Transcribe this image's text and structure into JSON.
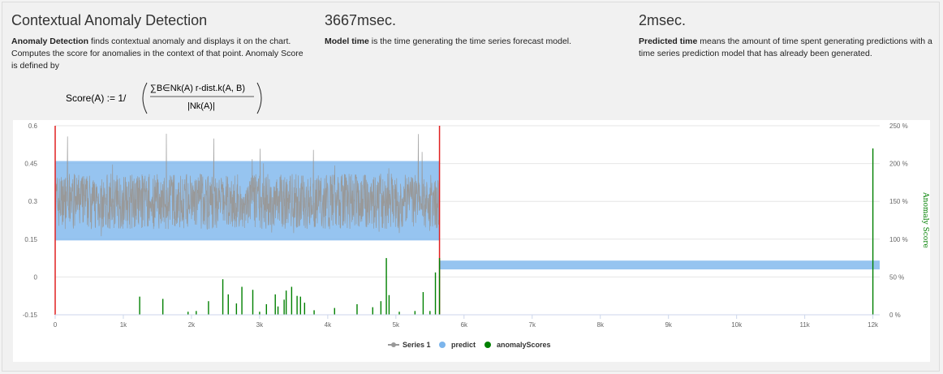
{
  "sections": [
    {
      "title": "Contextual Anomaly Detection",
      "bold": "Anomaly Detection",
      "text": " finds contextual anomaly and displays it on the chart. Computes the score for anomalies in the context of that point. Anomaly Score is defined by"
    },
    {
      "title": "3667msec.",
      "bold": "Model time",
      "text": " is the time generating the time series forecast model."
    },
    {
      "title": "2msec.",
      "bold": "Predicted time",
      "text": " means the amount of time spent generating predictions with a time series prediction model that has already been generated."
    }
  ],
  "formula": {
    "lhs": "Score(A) := 1/",
    "numerator": "∑B∈Nk(A) r-dist.k(A, B)",
    "denominator": "|Nk(A)|"
  },
  "colors": {
    "series1": "#999999",
    "predict": "#7cb5ec",
    "anomaly": "#008000",
    "marker": "#e02020"
  },
  "chart_data": {
    "type": "line",
    "x_ticks": [
      "0",
      "1k",
      "2k",
      "3k",
      "4k",
      "5k",
      "6k",
      "7k",
      "8k",
      "9k",
      "10k",
      "11k",
      "12k"
    ],
    "y_ticks": [
      "-0.15",
      "0",
      "0.15",
      "0.3",
      "0.45",
      "0.6"
    ],
    "y2_ticks": [
      "0 %",
      "50 %",
      "100 %",
      "150 %",
      "200 %",
      "250 %"
    ],
    "y2label": "Anomaly Score",
    "xlim": [
      0,
      12100
    ],
    "ylim": [
      -0.15,
      0.6
    ],
    "y2lim": [
      0,
      250
    ],
    "series": [
      {
        "name": "Series 1",
        "type": "line",
        "x_range": [
          0,
          5640
        ],
        "mean": 0.3,
        "typical_band": [
          0.2,
          0.4
        ],
        "max": 0.57
      },
      {
        "name": "predict",
        "type": "arearange",
        "segments": [
          {
            "x": [
              0,
              5640
            ],
            "low": 0.145,
            "high": 0.46
          },
          {
            "x": [
              5640,
              12100
            ],
            "low": 0.03,
            "high": 0.065
          }
        ]
      },
      {
        "name": "anomalyScores",
        "type": "column",
        "points": [
          [
            1240,
            24
          ],
          [
            1580,
            21
          ],
          [
            1950,
            4
          ],
          [
            2070,
            5
          ],
          [
            2250,
            18
          ],
          [
            2460,
            47
          ],
          [
            2540,
            27
          ],
          [
            2660,
            15
          ],
          [
            2740,
            37
          ],
          [
            2900,
            33
          ],
          [
            3000,
            4
          ],
          [
            3100,
            14
          ],
          [
            3230,
            27
          ],
          [
            3270,
            11
          ],
          [
            3360,
            20
          ],
          [
            3390,
            32
          ],
          [
            3470,
            37
          ],
          [
            3550,
            25
          ],
          [
            3600,
            24
          ],
          [
            3660,
            16
          ],
          [
            3800,
            6
          ],
          [
            4100,
            9
          ],
          [
            4430,
            14
          ],
          [
            4660,
            10
          ],
          [
            4780,
            18
          ],
          [
            4860,
            75
          ],
          [
            4900,
            26
          ],
          [
            5050,
            4
          ],
          [
            5280,
            5
          ],
          [
            5400,
            30
          ],
          [
            5500,
            5
          ],
          [
            5580,
            56
          ],
          [
            5640,
            75
          ],
          [
            12000,
            220
          ]
        ]
      }
    ],
    "vertical_markers_x": [
      0,
      5640
    ],
    "legend": [
      "Series 1",
      "predict",
      "anomalyScores"
    ],
    "legend_position": "bottom-center",
    "grid": true
  }
}
